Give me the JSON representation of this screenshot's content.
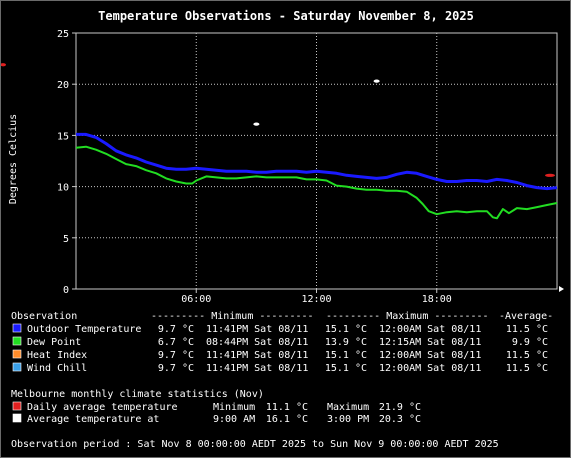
{
  "title": "Temperature Observations - Saturday November 8, 2025",
  "colors": {
    "background": "#000000",
    "plot_border": "#c8c8c8",
    "grid": "#c8c8c8",
    "text": "#ffffff",
    "temp": "#1a1aff",
    "dew": "#22dd22",
    "heat": "#ff8c2a",
    "chill": "#3aa0e8",
    "climate_avg": "#e02020",
    "climate_at": "#ffffff"
  },
  "chart_data": {
    "type": "line",
    "title": "Temperature Observations - Saturday November 8, 2025",
    "ylabel": "Degrees Celcius",
    "xlabel": "",
    "xlim": [
      0,
      24
    ],
    "ylim": [
      0,
      25
    ],
    "x_ticks": [
      {
        "v": 6,
        "label": "06:00"
      },
      {
        "v": 12,
        "label": "12:00"
      },
      {
        "v": 18,
        "label": "18:00"
      }
    ],
    "y_ticks": [
      0,
      5,
      10,
      15,
      20,
      25
    ],
    "grid": true,
    "series": [
      {
        "name": "Outdoor Temperature",
        "color_key": "temp",
        "points": [
          [
            0,
            15.1
          ],
          [
            0.5,
            15.1
          ],
          [
            1,
            14.8
          ],
          [
            1.5,
            14.2
          ],
          [
            2,
            13.5
          ],
          [
            2.5,
            13.1
          ],
          [
            3,
            12.8
          ],
          [
            3.5,
            12.4
          ],
          [
            4,
            12.1
          ],
          [
            4.5,
            11.8
          ],
          [
            5,
            11.7
          ],
          [
            5.5,
            11.7
          ],
          [
            6,
            11.8
          ],
          [
            6.5,
            11.7
          ],
          [
            7,
            11.6
          ],
          [
            7.5,
            11.5
          ],
          [
            8,
            11.5
          ],
          [
            8.5,
            11.5
          ],
          [
            9,
            11.4
          ],
          [
            9.5,
            11.4
          ],
          [
            10,
            11.5
          ],
          [
            10.5,
            11.5
          ],
          [
            11,
            11.5
          ],
          [
            11.5,
            11.4
          ],
          [
            12,
            11.5
          ],
          [
            12.5,
            11.4
          ],
          [
            13,
            11.3
          ],
          [
            13.5,
            11.1
          ],
          [
            14,
            11.0
          ],
          [
            14.5,
            10.9
          ],
          [
            15,
            10.8
          ],
          [
            15.5,
            10.9
          ],
          [
            16,
            11.2
          ],
          [
            16.5,
            11.4
          ],
          [
            17,
            11.3
          ],
          [
            17.5,
            11.0
          ],
          [
            18,
            10.7
          ],
          [
            18.5,
            10.5
          ],
          [
            19,
            10.5
          ],
          [
            19.5,
            10.6
          ],
          [
            20,
            10.6
          ],
          [
            20.5,
            10.5
          ],
          [
            21,
            10.7
          ],
          [
            21.5,
            10.6
          ],
          [
            22,
            10.4
          ],
          [
            22.5,
            10.1
          ],
          [
            23,
            9.9
          ],
          [
            23.5,
            9.8
          ],
          [
            24,
            9.9
          ]
        ]
      },
      {
        "name": "Dew Point",
        "color_key": "dew",
        "points": [
          [
            0,
            13.8
          ],
          [
            0.5,
            13.9
          ],
          [
            1,
            13.6
          ],
          [
            1.5,
            13.2
          ],
          [
            2,
            12.7
          ],
          [
            2.5,
            12.2
          ],
          [
            3,
            12.0
          ],
          [
            3.5,
            11.6
          ],
          [
            4,
            11.3
          ],
          [
            4.5,
            10.8
          ],
          [
            5,
            10.5
          ],
          [
            5.5,
            10.3
          ],
          [
            5.8,
            10.3
          ],
          [
            6,
            10.6
          ],
          [
            6.5,
            11.0
          ],
          [
            7,
            10.9
          ],
          [
            7.5,
            10.8
          ],
          [
            8,
            10.8
          ],
          [
            8.5,
            10.9
          ],
          [
            9,
            11.0
          ],
          [
            9.5,
            10.9
          ],
          [
            10,
            10.9
          ],
          [
            10.5,
            10.9
          ],
          [
            11,
            10.9
          ],
          [
            11.5,
            10.7
          ],
          [
            12,
            10.7
          ],
          [
            12.5,
            10.6
          ],
          [
            13,
            10.1
          ],
          [
            13.5,
            10.0
          ],
          [
            14,
            9.8
          ],
          [
            14.5,
            9.7
          ],
          [
            15,
            9.7
          ],
          [
            15.5,
            9.6
          ],
          [
            16,
            9.6
          ],
          [
            16.5,
            9.5
          ],
          [
            17,
            8.9
          ],
          [
            17.3,
            8.3
          ],
          [
            17.6,
            7.6
          ],
          [
            18,
            7.3
          ],
          [
            18.5,
            7.5
          ],
          [
            19,
            7.6
          ],
          [
            19.5,
            7.5
          ],
          [
            20,
            7.6
          ],
          [
            20.5,
            7.6
          ],
          [
            20.8,
            7.0
          ],
          [
            21,
            6.9
          ],
          [
            21.3,
            7.8
          ],
          [
            21.6,
            7.4
          ],
          [
            22,
            7.9
          ],
          [
            22.5,
            7.8
          ],
          [
            23,
            8.0
          ],
          [
            23.5,
            8.2
          ],
          [
            24,
            8.4
          ]
        ]
      }
    ],
    "climate_markers": [
      {
        "kind": "daily_average",
        "color_key": "climate_avg",
        "x": 0,
        "y": 21.9
      },
      {
        "kind": "daily_average",
        "color_key": "climate_avg",
        "x": 24,
        "y": 11.1
      },
      {
        "kind": "average_at",
        "color_key": "climate_at",
        "x": 9,
        "y": 16.1
      },
      {
        "kind": "average_at",
        "color_key": "climate_at",
        "x": 15,
        "y": 20.3
      }
    ]
  },
  "table": {
    "headers": {
      "observation": "Observation",
      "minimum": "--------- Minimum ---------",
      "maximum": "--------- Maximum ---------",
      "average": "-Average-"
    },
    "rows": [
      {
        "name": "Outdoor Temperature",
        "color_key": "temp",
        "min_val": "9.7 °C",
        "min_time": "11:41PM Sat 08/11",
        "max_val": "15.1 °C",
        "max_time": "12:00AM Sat 08/11",
        "avg": "11.5 °C"
      },
      {
        "name": "Dew Point",
        "color_key": "dew",
        "min_val": "6.7 °C",
        "min_time": "08:44PM Sat 08/11",
        "max_val": "13.9 °C",
        "max_time": "12:15AM Sat 08/11",
        "avg": "9.9 °C"
      },
      {
        "name": "Heat Index",
        "color_key": "heat",
        "min_val": "9.7 °C",
        "min_time": "11:41PM Sat 08/11",
        "max_val": "15.1 °C",
        "max_time": "12:00AM Sat 08/11",
        "avg": "11.5 °C"
      },
      {
        "name": "Wind Chill",
        "color_key": "chill",
        "min_val": "9.7 °C",
        "min_time": "11:41PM Sat 08/11",
        "max_val": "15.1 °C",
        "max_time": "12:00AM Sat 08/11",
        "avg": "11.5 °C"
      }
    ]
  },
  "climate": {
    "heading": "Melbourne monthly climate statistics (Nov)",
    "rows": [
      {
        "label": "Daily average temperature",
        "color_key": "climate_avg",
        "a_label": "Minimum",
        "a_value": "11.1 °C",
        "b_label": "Maximum",
        "b_value": "21.9 °C"
      },
      {
        "label": "Average temperature at",
        "color_key": "climate_at",
        "a_label": "9:00 AM",
        "a_value": "16.1 °C",
        "b_label": "3:00 PM",
        "b_value": "20.3 °C"
      }
    ]
  },
  "footer": "Observation period : Sat Nov 8 00:00:00 AEDT 2025 to Sun Nov 9 00:00:00 AEDT 2025"
}
